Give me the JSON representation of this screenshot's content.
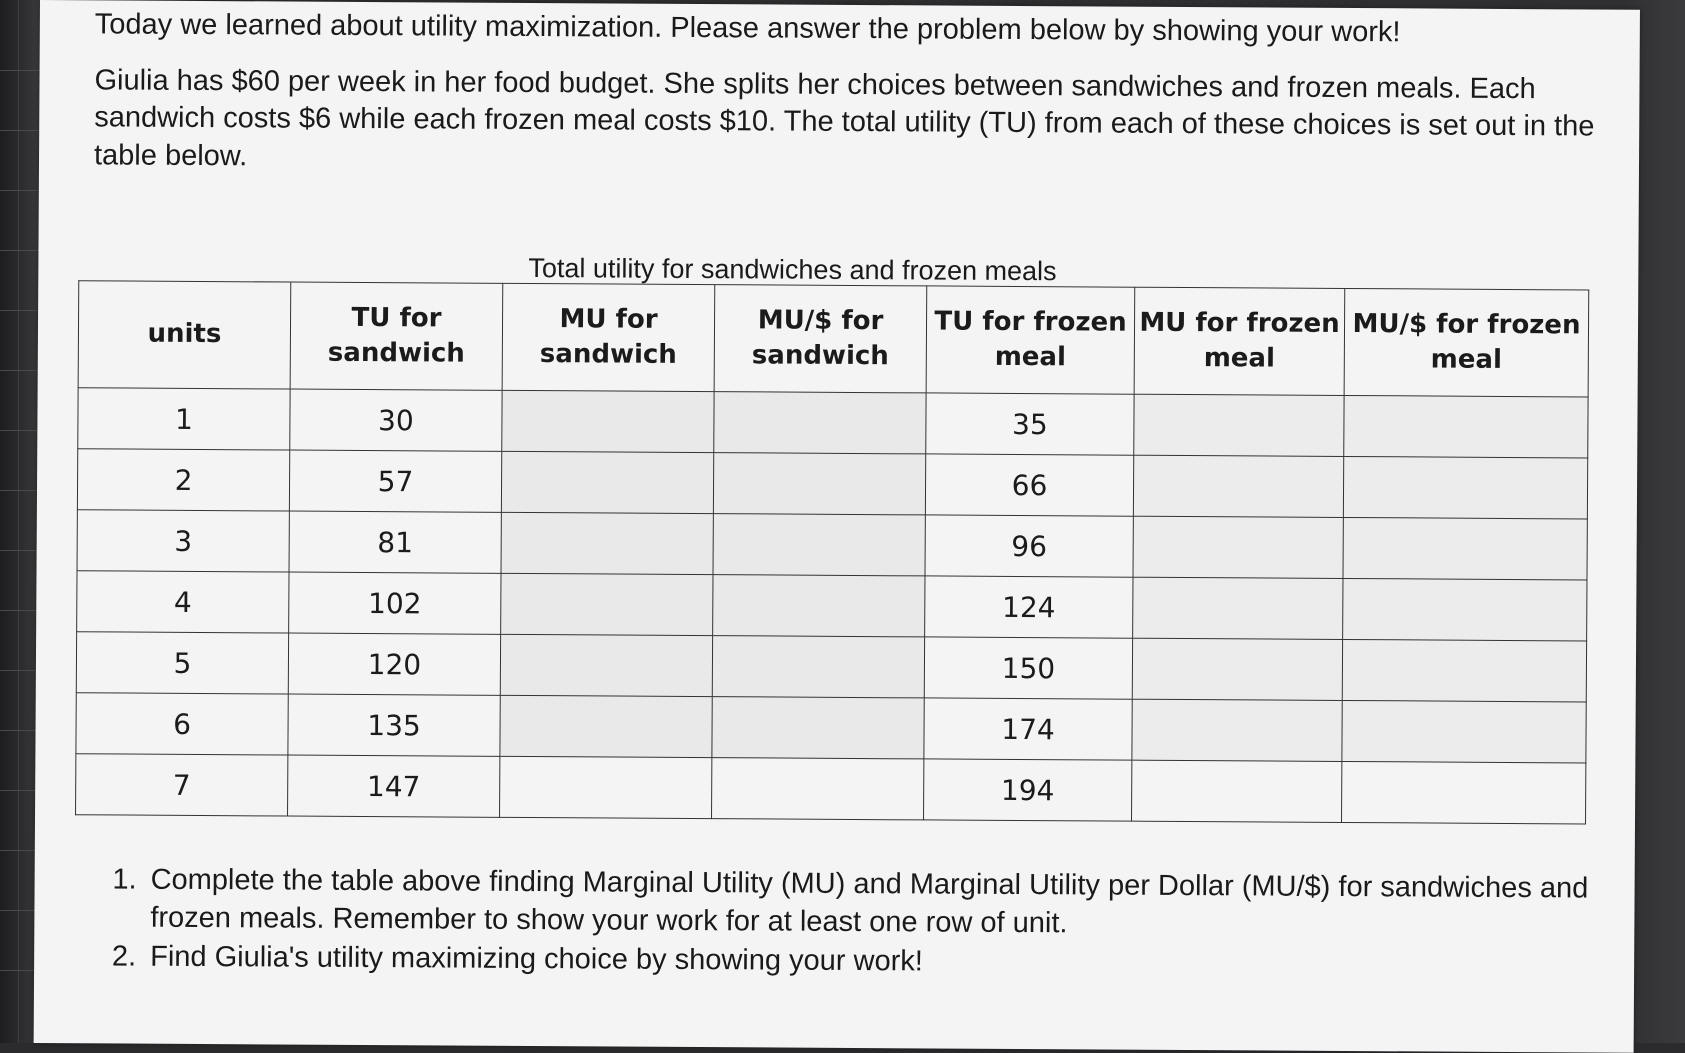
{
  "instructions": {
    "heading": "Today we learned about utility maximization. Please answer the problem below by showing your work!",
    "problem": "Giulia has $60 per week in her food budget. She splits her choices between sandwiches and frozen meals. Each sandwich costs $6 while each frozen meal costs $10. The total utility (TU) from each of these choices is set out in the table below."
  },
  "table": {
    "caption": "Total utility for sandwiches and frozen meals",
    "headers": [
      "units",
      "TU for sandwich",
      "MU for sandwich",
      "MU/$ for sandwich",
      "TU for frozen meal",
      "MU for frozen meal",
      "MU/$ for frozen meal"
    ],
    "rows": [
      [
        "1",
        "30",
        "",
        "",
        "35",
        "",
        ""
      ],
      [
        "2",
        "57",
        "",
        "",
        "66",
        "",
        ""
      ],
      [
        "3",
        "81",
        "",
        "",
        "96",
        "",
        ""
      ],
      [
        "4",
        "102",
        "",
        "",
        "124",
        "",
        ""
      ],
      [
        "5",
        "120",
        "",
        "",
        "150",
        "",
        ""
      ],
      [
        "6",
        "135",
        "",
        "",
        "174",
        "",
        ""
      ],
      [
        "7",
        "147",
        "",
        "",
        "194",
        "",
        ""
      ]
    ]
  },
  "questions": [
    "Complete the table above finding Marginal Utility (MU) and Marginal Utility per Dollar (MU/$) for sandwiches and frozen meals. Remember to show your work for at least one row of unit.",
    "Find Giulia's utility maximizing choice by showing your work!"
  ]
}
